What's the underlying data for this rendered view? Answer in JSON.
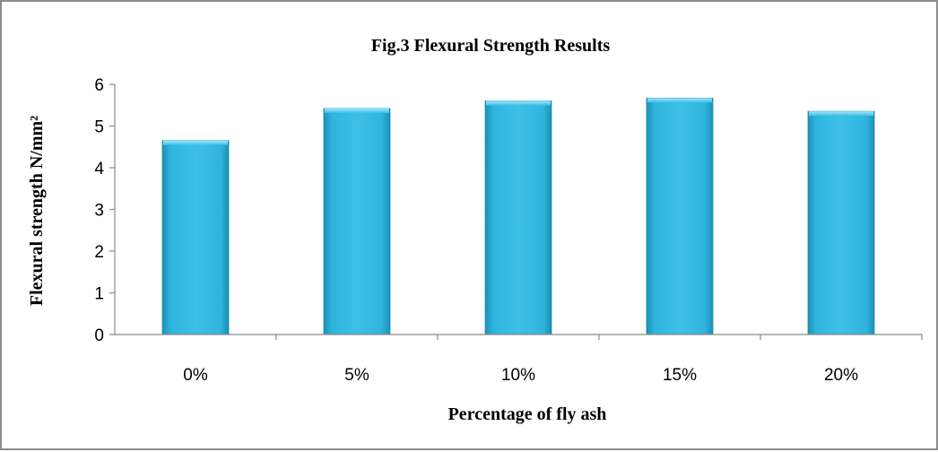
{
  "chart_data": {
    "type": "bar",
    "title": "Fig.3 Flexural Strength Results",
    "xlabel": "Percentage of fly ash",
    "ylabel": "Flexural strength N/mm²",
    "categories": [
      "0%",
      "5%",
      "10%",
      "15%",
      "20%"
    ],
    "values": [
      4.65,
      5.42,
      5.6,
      5.67,
      5.35
    ],
    "ylim": [
      0,
      6
    ],
    "yticks": [
      "0",
      "1",
      "2",
      "3",
      "4",
      "5",
      "6"
    ],
    "grid": false,
    "legend": "none",
    "colors": {
      "bar": "#2fb4dd",
      "bar_light": "#7fdbf5",
      "bar_dark": "#1c8fb5",
      "axis": "#8a8a8a"
    }
  }
}
